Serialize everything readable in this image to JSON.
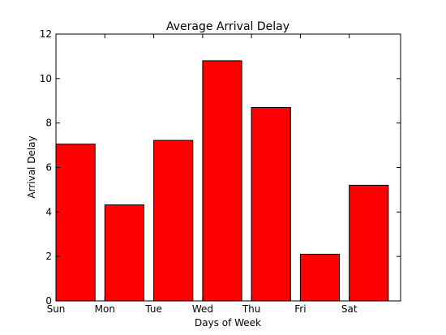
{
  "chart_data": {
    "type": "bar",
    "title": "Average Arrival Delay",
    "xlabel": "Days of Week",
    "ylabel": "Arrival Delay",
    "categories": [
      "Sun",
      "Mon",
      "Tue",
      "Wed",
      "Thu",
      "Fri",
      "Sat"
    ],
    "values": [
      7.05,
      4.32,
      7.22,
      10.8,
      8.7,
      2.1,
      5.2
    ],
    "ylim": [
      0,
      12
    ],
    "yticks": [
      "0",
      "2",
      "4",
      "6",
      "8",
      "10",
      "12"
    ],
    "bar_color": "#ff0000",
    "bar_edge_color": "#000000",
    "grid": false,
    "legend": "none"
  }
}
